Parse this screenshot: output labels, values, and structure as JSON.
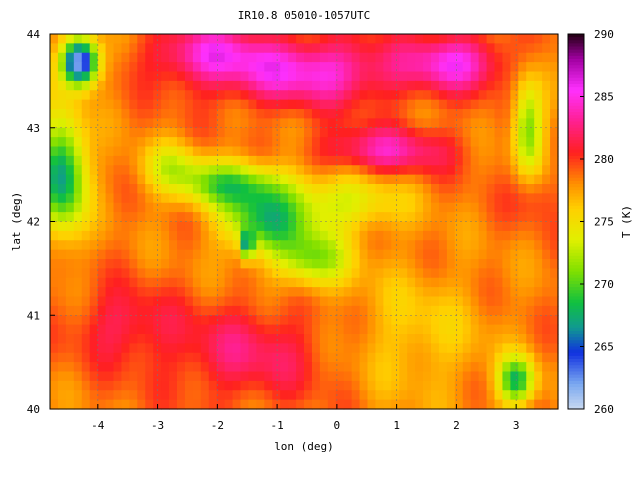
{
  "chart_data": {
    "type": "heatmap",
    "title": "IR10.8 05010-1057UTC",
    "xlabel": "lon (deg)",
    "ylabel": "lat (deg)",
    "colorbar_label": "T (K)",
    "xlim": [
      -4.8,
      3.7
    ],
    "ylim": [
      40,
      44
    ],
    "clim": [
      260,
      290
    ],
    "x_ticks": [
      -4,
      -3,
      -2,
      -1,
      0,
      1,
      2,
      3
    ],
    "y_ticks": [
      40,
      41,
      42,
      43,
      44
    ],
    "colorbar_ticks": [
      260,
      265,
      270,
      275,
      280,
      285,
      290
    ],
    "grid": true,
    "colormap": [
      {
        "value": 260,
        "color": "#c8d8f0"
      },
      {
        "value": 262,
        "color": "#7aa8f0"
      },
      {
        "value": 264.5,
        "color": "#1030e0"
      },
      {
        "value": 266.5,
        "color": "#109a90"
      },
      {
        "value": 268.5,
        "color": "#10c040"
      },
      {
        "value": 271,
        "color": "#80e000"
      },
      {
        "value": 273.5,
        "color": "#e0f000"
      },
      {
        "value": 276,
        "color": "#ffd000"
      },
      {
        "value": 278,
        "color": "#ff9000"
      },
      {
        "value": 280.5,
        "color": "#ff2020"
      },
      {
        "value": 283,
        "color": "#ff2090"
      },
      {
        "value": 285.5,
        "color": "#ff30ff"
      },
      {
        "value": 288,
        "color": "#a000a0"
      },
      {
        "value": 290,
        "color": "#200010"
      }
    ],
    "field": {
      "background": 278.5,
      "features": [
        {
          "lon": -0.5,
          "lat": 43.6,
          "sx": 1.6,
          "sy": 0.35,
          "amp": 6.5
        },
        {
          "lon": 2.0,
          "lat": 43.7,
          "sx": 0.8,
          "sy": 0.3,
          "amp": 6
        },
        {
          "lon": -2.2,
          "lat": 43.8,
          "sx": 0.9,
          "sy": 0.3,
          "amp": 5
        },
        {
          "lon": 0.8,
          "lat": 42.75,
          "sx": 1.1,
          "sy": 0.25,
          "amp": 5
        },
        {
          "lon": -1.8,
          "lat": 42.4,
          "sx": 0.9,
          "sy": 0.25,
          "amp": -8
        },
        {
          "lon": -1.2,
          "lat": 42.0,
          "sx": 0.7,
          "sy": 0.35,
          "amp": -9
        },
        {
          "lon": -0.4,
          "lat": 41.6,
          "sx": 0.6,
          "sy": 0.3,
          "amp": -7
        },
        {
          "lon": 0.1,
          "lat": 42.2,
          "sx": 1.0,
          "sy": 0.3,
          "amp": -5
        },
        {
          "lon": -1.5,
          "lat": 41.75,
          "sx": 0.1,
          "sy": 0.15,
          "amp": -10
        },
        {
          "lon": -4.6,
          "lat": 42.5,
          "sx": 0.4,
          "sy": 0.6,
          "amp": -12
        },
        {
          "lon": -4.3,
          "lat": 43.7,
          "sx": 0.3,
          "sy": 0.25,
          "amp": -18
        },
        {
          "lon": -1.5,
          "lat": 40.6,
          "sx": 1.4,
          "sy": 0.5,
          "amp": 3.5
        },
        {
          "lon": -3.6,
          "lat": 40.9,
          "sx": 0.8,
          "sy": 0.4,
          "amp": 3
        },
        {
          "lon": 1.3,
          "lat": 40.8,
          "sx": 1.2,
          "sy": 0.7,
          "amp": -2.5
        },
        {
          "lon": 3.0,
          "lat": 40.3,
          "sx": 0.3,
          "sy": 0.25,
          "amp": -10
        },
        {
          "lon": 3.2,
          "lat": 43.0,
          "sx": 0.25,
          "sy": 0.5,
          "amp": -8
        },
        {
          "lon": 3.3,
          "lat": 42.3,
          "sx": 0.4,
          "sy": 0.3,
          "amp": 2
        },
        {
          "lon": -2.8,
          "lat": 42.6,
          "sx": 0.5,
          "sy": 0.25,
          "amp": -4
        }
      ]
    }
  }
}
